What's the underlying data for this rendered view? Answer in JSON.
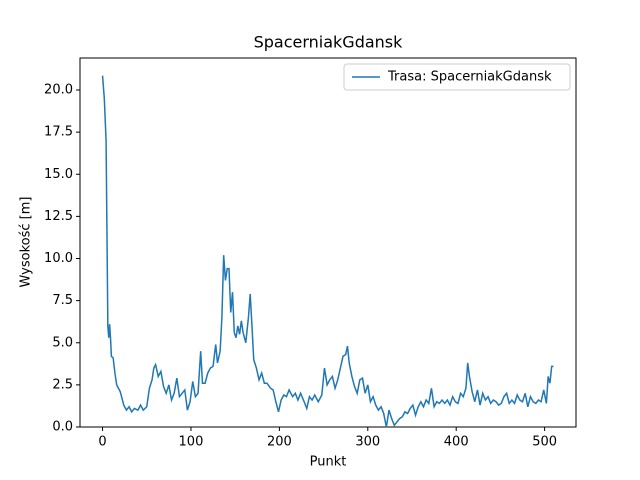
{
  "chart_data": {
    "type": "line",
    "title": "SpacerniakGdansk",
    "x_label": "Punkt",
    "y_label": "Wysokość [m]",
    "legend": "upper right",
    "grid": false,
    "xlim": [
      -25.5,
      535.5
    ],
    "xticks": [
      0,
      100,
      200,
      300,
      400,
      500
    ],
    "ylim": [
      0,
      21.9
    ],
    "yticks": [
      {
        "value": 0,
        "label": "0.0"
      },
      2.5,
      {
        "value": 5,
        "label": "5.0"
      },
      7.5,
      {
        "value": 10,
        "label": "10.0"
      },
      12.5,
      {
        "value": 15,
        "label": "15.0"
      },
      17.5,
      {
        "value": 20,
        "label": "20.0"
      }
    ],
    "x": [
      0,
      2,
      4,
      6,
      7,
      8,
      9,
      10,
      12,
      14,
      16,
      20,
      24,
      27,
      30,
      33,
      36,
      40,
      43,
      46,
      50,
      53,
      56,
      58,
      60,
      63,
      66,
      69,
      72,
      75,
      78,
      81,
      84,
      87,
      90,
      93,
      96,
      99,
      102,
      105,
      108,
      111,
      113,
      116,
      119,
      122,
      125,
      128,
      130,
      133,
      135,
      137,
      139,
      141,
      143,
      145,
      147,
      149,
      151,
      153,
      155,
      157,
      159,
      162,
      165,
      167,
      169,
      171,
      174,
      177,
      180,
      183,
      186,
      190,
      193,
      196,
      199,
      202,
      205,
      208,
      211,
      215,
      218,
      221,
      224,
      228,
      231,
      234,
      237,
      240,
      244,
      248,
      251,
      254,
      257,
      260,
      263,
      266,
      269,
      272,
      275,
      277,
      279,
      282,
      285,
      288,
      291,
      294,
      297,
      300,
      303,
      306,
      309,
      312,
      315,
      318,
      321,
      324,
      327,
      330,
      333,
      336,
      339,
      342,
      345,
      348,
      351,
      354,
      357,
      360,
      363,
      366,
      369,
      372,
      375,
      378,
      381,
      384,
      387,
      390,
      393,
      396,
      399,
      402,
      405,
      408,
      411,
      413,
      415,
      418,
      421,
      424,
      427,
      430,
      433,
      436,
      439,
      442,
      445,
      448,
      451,
      454,
      457,
      460,
      463,
      466,
      469,
      472,
      475,
      478,
      481,
      484,
      487,
      490,
      493,
      496,
      499,
      502,
      504,
      506,
      508,
      510
    ],
    "series": [
      {
        "name": "Trasa: SpacerniakGdansk",
        "color": "#1f77b4",
        "values": [
          20.85,
          19.5,
          17,
          6,
          5.3,
          6.1,
          5.3,
          4.2,
          4.1,
          3.2,
          2.5,
          2.1,
          1.3,
          1.0,
          1.2,
          0.9,
          1.1,
          1.0,
          1.3,
          1.0,
          1.2,
          2.3,
          2.8,
          3.5,
          3.7,
          3.0,
          3.3,
          2.4,
          2.0,
          2.5,
          1.6,
          2.0,
          2.9,
          1.8,
          2.0,
          2.2,
          1.0,
          1.5,
          2.7,
          1.8,
          2.0,
          4.5,
          2.6,
          2.6,
          3.2,
          3.5,
          3.6,
          4.9,
          3.8,
          4.5,
          6.5,
          10.2,
          8.7,
          9.4,
          9.4,
          6.8,
          8.0,
          5.6,
          5.3,
          6.0,
          5.5,
          6.3,
          5.6,
          5.0,
          6.5,
          7.9,
          6.0,
          4.0,
          3.5,
          2.8,
          3.2,
          2.6,
          2.6,
          2.3,
          2.2,
          1.5,
          0.9,
          1.6,
          1.9,
          1.8,
          2.2,
          1.8,
          2.0,
          1.6,
          2.0,
          1.5,
          1.1,
          1.8,
          1.6,
          1.9,
          1.5,
          1.9,
          3.5,
          2.5,
          2.8,
          3.0,
          2.3,
          2.8,
          3.5,
          4.2,
          4.3,
          4.8,
          3.8,
          3.0,
          2.4,
          2.0,
          2.8,
          2.9,
          2.0,
          2.5,
          1.5,
          1.8,
          1.3,
          1.0,
          1.2,
          0.8,
          0.0,
          1.0,
          0.5,
          0.1,
          0.3,
          0.5,
          0.6,
          0.9,
          0.8,
          1.1,
          1.3,
          0.7,
          1.2,
          1.5,
          1.2,
          1.6,
          1.4,
          2.3,
          1.2,
          1.5,
          1.4,
          1.6,
          1.4,
          1.6,
          1.3,
          1.8,
          1.5,
          1.4,
          2.0,
          1.8,
          2.3,
          3.8,
          3.0,
          2.1,
          1.5,
          2.2,
          1.3,
          2.0,
          1.6,
          1.8,
          1.4,
          1.6,
          1.5,
          1.3,
          1.4,
          1.8,
          2.0,
          1.4,
          1.6,
          1.4,
          1.9,
          1.6,
          1.5,
          2.0,
          1.2,
          1.8,
          1.5,
          1.4,
          1.6,
          1.5,
          2.2,
          1.4,
          3.0,
          2.6,
          3.6,
          3.6
        ]
      }
    ]
  }
}
